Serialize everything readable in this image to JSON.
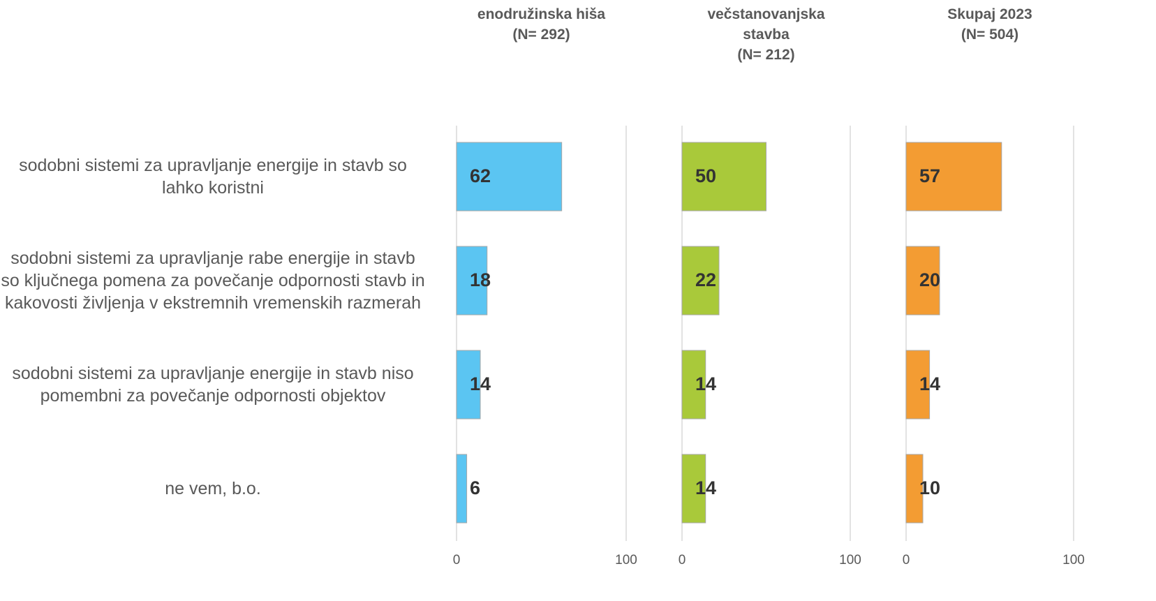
{
  "chart_data": {
    "type": "bar",
    "orientation": "horizontal",
    "categories": [
      "sodobni sistemi za upravljanje energije in stavb so lahko koristni",
      "sodobni sistemi za upravljanje rabe energije in stavb so ključnega pomena za povečanje odpornosti stavb in kakovosti življenja v ekstremnih vremenskih razmerah",
      "sodobni sistemi za upravljanje energije in stavb niso pomembni za povečanje odpornosti objektov",
      "ne vem, b.o."
    ],
    "series": [
      {
        "name": "enodružinska hiša\n(N= 292)",
        "color": "#5bc5f2",
        "values": [
          62,
          18,
          14,
          6
        ]
      },
      {
        "name": "večstanovanjska\nstavba\n(N= 212)",
        "color": "#a9c93a",
        "values": [
          50,
          22,
          14,
          14
        ]
      },
      {
        "name": "Skupaj 2023\n(N= 504)",
        "color": "#f39c33",
        "values": [
          57,
          20,
          14,
          10
        ]
      }
    ],
    "xlim": [
      0,
      100
    ],
    "xticks": [
      0,
      100
    ],
    "grid": true
  }
}
